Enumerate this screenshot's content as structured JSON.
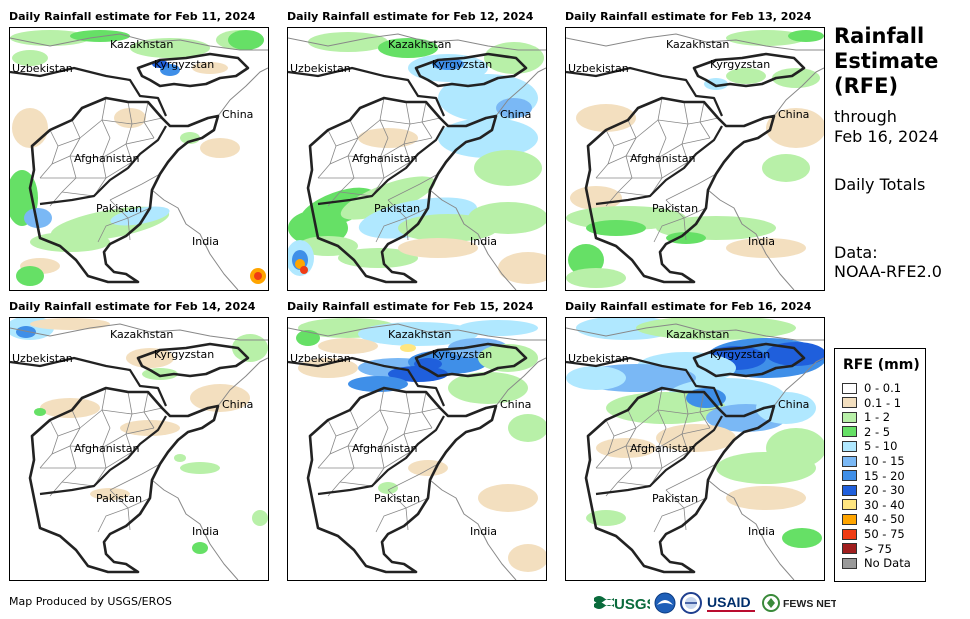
{
  "panels": [
    {
      "title": "Daily Rainfall estimate for Feb 11, 2024"
    },
    {
      "title": "Daily Rainfall estimate for Feb 12, 2024"
    },
    {
      "title": "Daily Rainfall estimate for Feb 13, 2024"
    },
    {
      "title": "Daily Rainfall estimate for Feb 14, 2024"
    },
    {
      "title": "Daily Rainfall estimate for Feb 15, 2024"
    },
    {
      "title": "Daily Rainfall estimate for Feb 16, 2024"
    }
  ],
  "country_labels": {
    "kazakhstan": "Kazakhstan",
    "uzbekistan": "Uzbekistan",
    "kyrgyzstan": "Kyrgyzstan",
    "china": "China",
    "afghanistan": "Afghanistan",
    "pakistan": "Pakistan",
    "india": "India"
  },
  "sidebar": {
    "title_line1": "Rainfall",
    "title_line2": "Estimate",
    "title_line3": "(RFE)",
    "through": "through",
    "date": "Feb 16, 2024",
    "totals": "Daily Totals",
    "data_label": "Data:",
    "data_source": "NOAA-RFE2.0"
  },
  "legend": {
    "title": "RFE (mm)",
    "items": [
      {
        "label": "0 - 0.1",
        "color": "#ffffff"
      },
      {
        "label": "0.1 - 1",
        "color": "#f3dfbf"
      },
      {
        "label": "1 - 2",
        "color": "#b8f0a8"
      },
      {
        "label": "2 - 5",
        "color": "#66e066"
      },
      {
        "label": "5 - 10",
        "color": "#b0e8ff"
      },
      {
        "label": "10 - 15",
        "color": "#7ab8f5"
      },
      {
        "label": "15 - 20",
        "color": "#3f8fe8"
      },
      {
        "label": "20 - 30",
        "color": "#1f5fdc"
      },
      {
        "label": "30 - 40",
        "color": "#ffe680"
      },
      {
        "label": "40 - 50",
        "color": "#ffa500"
      },
      {
        "label": "50 - 75",
        "color": "#f03c14"
      },
      {
        "label": "> 75",
        "color": "#a01e1e"
      },
      {
        "label": "No Data",
        "color": "#999999"
      }
    ]
  },
  "footer": {
    "credit": "Map Produced by USGS/EROS",
    "usgs": "USGS",
    "usaid": "USAID",
    "fewsnet": "FEWS NET"
  },
  "colors": {
    "border": "#222222",
    "province": "#888888"
  }
}
